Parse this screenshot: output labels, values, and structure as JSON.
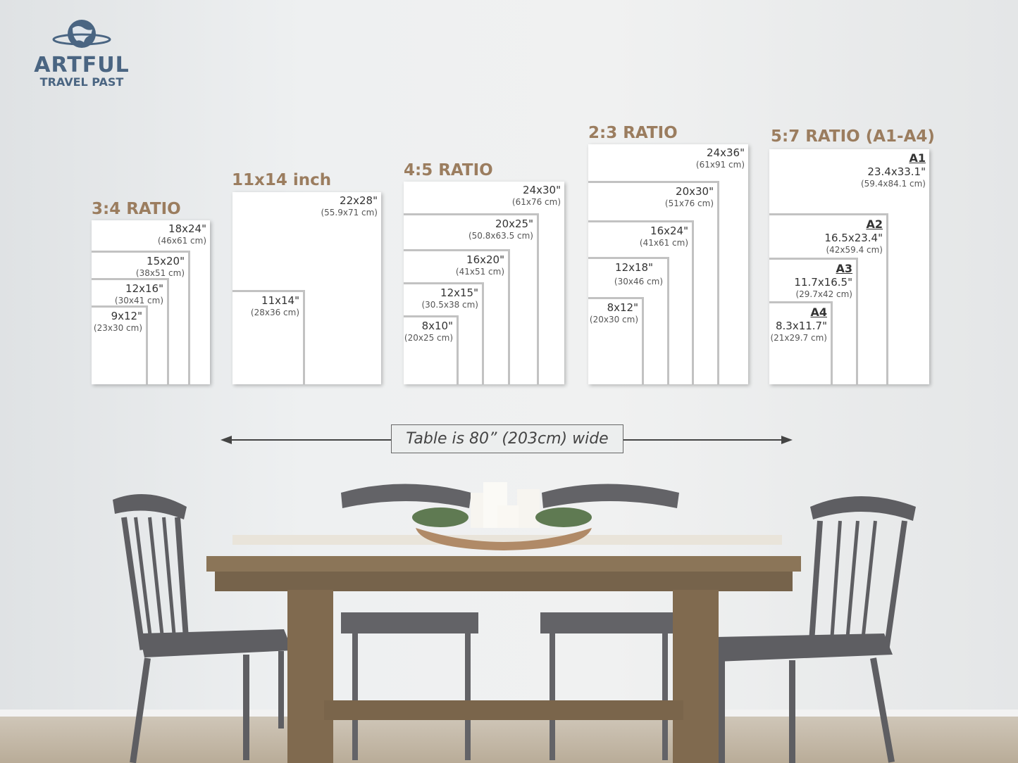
{
  "logo": {
    "line1": "ARTFUL",
    "line2": "TRAVEL PAST"
  },
  "groups": [
    {
      "title": "3:4 RATIO",
      "frames": [
        {
          "inch": "18x24\"",
          "cm": "(46x61 cm)"
        },
        {
          "inch": "15x20\"",
          "cm": "(38x51 cm)"
        },
        {
          "inch": "12x16\"",
          "cm": "(30x41 cm)"
        },
        {
          "inch": "9x12\"",
          "cm": "(23x30 cm)"
        }
      ]
    },
    {
      "title": "11x14 inch",
      "frames": [
        {
          "inch": "22x28\"",
          "cm": "(55.9x71 cm)"
        },
        {
          "inch": "11x14\"",
          "cm": "(28x36 cm)"
        }
      ]
    },
    {
      "title": "4:5 RATIO",
      "frames": [
        {
          "inch": "24x30\"",
          "cm": "(61x76 cm)"
        },
        {
          "inch": "20x25\"",
          "cm": "(50.8x63.5 cm)"
        },
        {
          "inch": "16x20\"",
          "cm": "(41x51 cm)"
        },
        {
          "inch": "12x15\"",
          "cm": "(30.5x38 cm)"
        },
        {
          "inch": "8x10\"",
          "cm": "(20x25 cm)"
        }
      ]
    },
    {
      "title": "2:3 RATIO",
      "frames": [
        {
          "inch": "24x36\"",
          "cm": "(61x91 cm)"
        },
        {
          "inch": "20x30\"",
          "cm": "(51x76 cm)"
        },
        {
          "inch": "16x24\"",
          "cm": "(41x61 cm)"
        },
        {
          "inch": "12x18\"",
          "cm": "(30x46 cm)"
        },
        {
          "inch": "8x12\"",
          "cm": "(20x30 cm)"
        }
      ]
    },
    {
      "title": "5:7 RATIO (A1-A4)",
      "frames": [
        {
          "name": "A1",
          "inch": "23.4x33.1\"",
          "cm": "(59.4x84.1 cm)"
        },
        {
          "name": "A2",
          "inch": "16.5x23.4\"",
          "cm": "(42x59.4 cm)"
        },
        {
          "name": "A3",
          "inch": "11.7x16.5\"",
          "cm": "(29.7x42 cm)"
        },
        {
          "name": "A4",
          "inch": "8.3x11.7\"",
          "cm": "(21x29.7 cm)"
        }
      ]
    }
  ],
  "table_caption": "Table is 80” (203cm) wide",
  "colors": {
    "title": "#9b7d5f",
    "logo": "#4a6582",
    "frame_border": "#c2c2c2"
  }
}
